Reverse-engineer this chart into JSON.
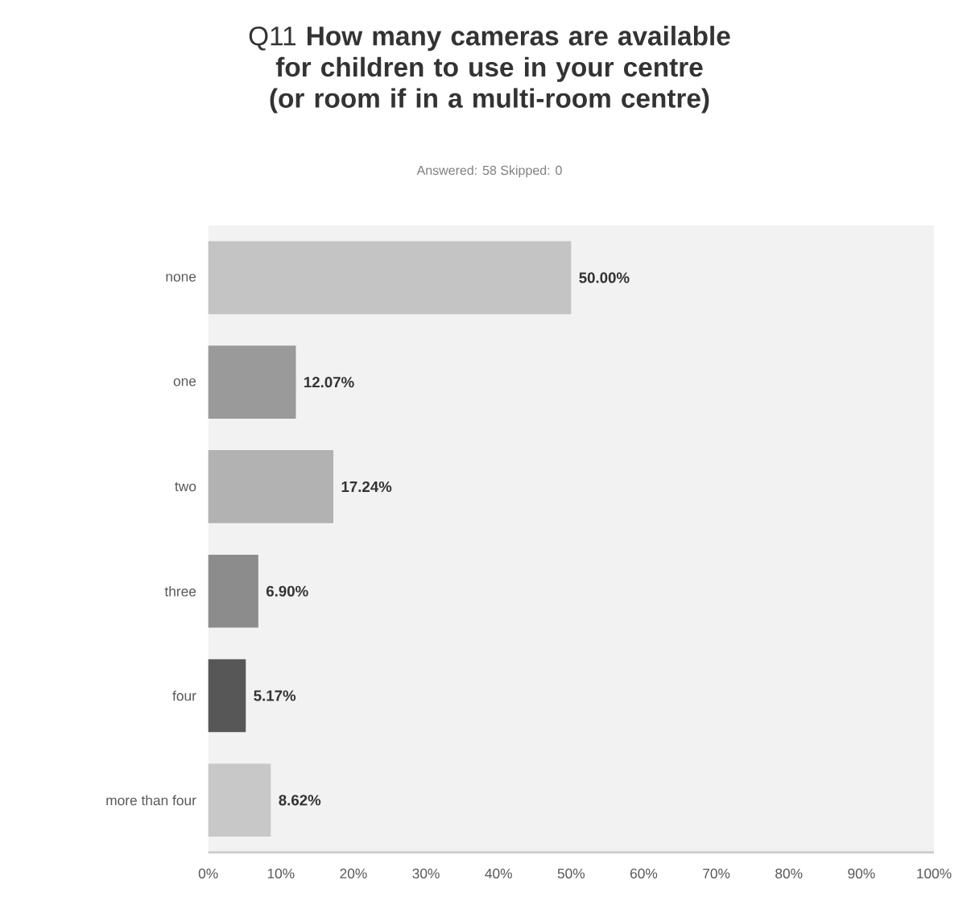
{
  "chart_data": {
    "type": "bar",
    "orientation": "horizontal",
    "title": "Q11 **How many cameras are available for children to use in your centre (or room if in a multi-room centre)**",
    "subtitle": "Answered: 58    Skipped: 0",
    "categories": [
      "none",
      "one",
      "two",
      "three",
      "four",
      "more than four"
    ],
    "values": [
      50.0,
      12.07,
      17.24,
      6.9,
      5.17,
      8.62
    ],
    "value_labels": [
      "50.00%",
      "12.07%",
      "17.24%",
      "6.90%",
      "5.17%",
      "8.62%"
    ],
    "colors": [
      "#c4c4c4",
      "#9a9a9a",
      "#b2b2b2",
      "#8c8c8c",
      "#575757",
      "#c8c8c8"
    ],
    "xlim": [
      0,
      100
    ],
    "xticks": [
      {
        "value": 0,
        "label": "0%"
      },
      {
        "value": 10,
        "label": "10%"
      },
      {
        "value": 20,
        "label": "20%"
      },
      {
        "value": 30,
        "label": "30%"
      },
      {
        "value": 40,
        "label": "40%"
      },
      {
        "value": 50,
        "label": "50%"
      },
      {
        "value": 60,
        "label": "60%"
      },
      {
        "value": 70,
        "label": "70%"
      },
      {
        "value": 80,
        "label": "80%"
      },
      {
        "value": 90,
        "label": "90%"
      },
      {
        "value": 100,
        "label": "100%"
      }
    ],
    "grid": false
  }
}
